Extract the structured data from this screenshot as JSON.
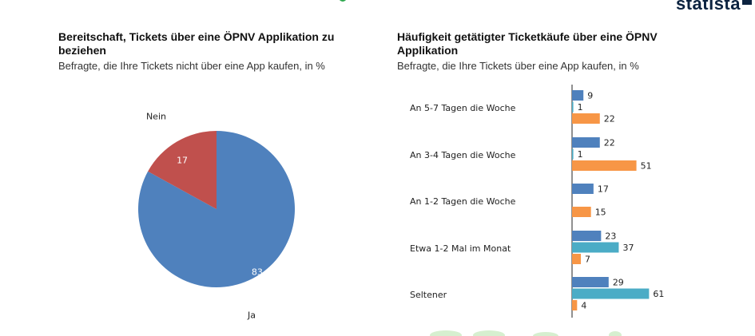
{
  "brand": {
    "logo_text": "statista",
    "accent": "#0c2340",
    "green": "#2fa84f"
  },
  "left_panel": {
    "title": "Bereitschaft, Tickets über eine ÖPNV Applikation zu beziehen",
    "subtitle": "Befragte, die Ihre Tickets nicht über eine App kaufen, in %"
  },
  "right_panel": {
    "title": "Häufigkeit getätigter Ticketkäufe über eine ÖPNV Applikation",
    "subtitle": "Befragte, die Ihre Tickets über eine App kaufen, in %"
  },
  "chart_data": [
    {
      "type": "pie",
      "title": "Bereitschaft, Tickets über eine ÖPNV Applikation zu beziehen",
      "slices": [
        {
          "label": "Ja",
          "value": 83,
          "color": "#4f81bd"
        },
        {
          "label": "Nein",
          "value": 17,
          "color": "#c0504d"
        }
      ]
    },
    {
      "type": "bar",
      "orientation": "horizontal",
      "title": "Häufigkeit getätigter Ticketkäufe über eine ÖPNV Applikation",
      "categories": [
        "An 5-7 Tagen die Woche",
        "An 3-4 Tagen die Woche",
        "An 1-2 Tagen die Woche",
        "Etwa 1-2 Mal im Monat",
        "Seltener"
      ],
      "series": [
        {
          "values": [
            9,
            22,
            17,
            23,
            29
          ],
          "color": "#4f81bd"
        },
        {
          "values": [
            1,
            1,
            null,
            37,
            61
          ],
          "color": "#4bacc6"
        },
        {
          "values": [
            22,
            51,
            15,
            7,
            4
          ],
          "color": "#f79646"
        }
      ],
      "xlim": [
        0,
        70
      ],
      "grid": false
    }
  ]
}
